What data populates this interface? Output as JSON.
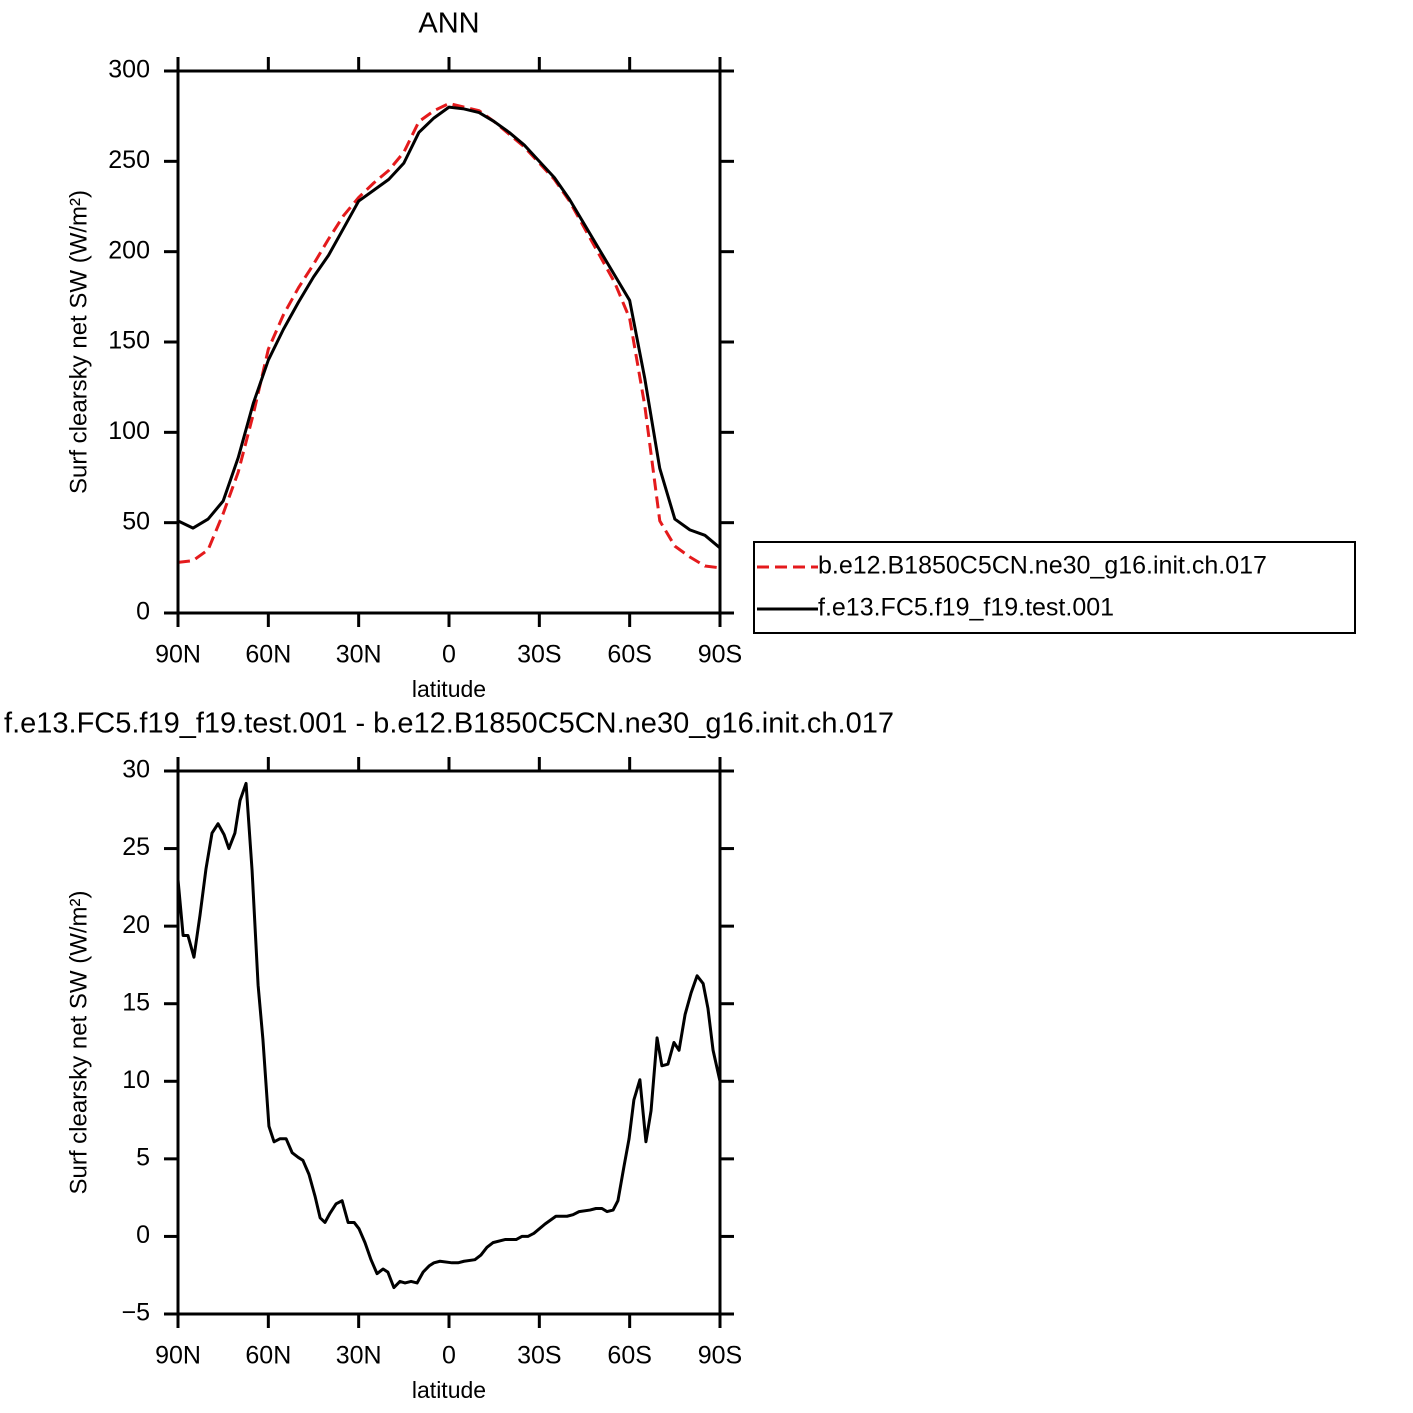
{
  "chart_data": [
    {
      "type": "line",
      "title": "ANN",
      "xlabel": "latitude",
      "ylabel": "Surf clearsky net SW (W/m²)",
      "x": [
        90,
        85,
        80,
        75,
        70,
        65,
        60,
        55,
        50,
        45,
        40,
        35,
        30,
        25,
        20,
        15,
        10,
        5,
        0,
        -5,
        -10,
        -15,
        -20,
        -25,
        -30,
        -35,
        -40,
        -45,
        -50,
        -55,
        -60,
        -65,
        -70,
        -75,
        -80,
        -85,
        -90
      ],
      "xlim": [
        90,
        -90
      ],
      "xticks": [
        {
          "value": 90,
          "label": "90N"
        },
        {
          "value": 60,
          "label": "60N"
        },
        {
          "value": 30,
          "label": "30N"
        },
        0,
        {
          "value": -30,
          "label": "30S"
        },
        {
          "value": -60,
          "label": "60S"
        },
        {
          "value": -90,
          "label": "90S"
        }
      ],
      "ylim": [
        0,
        300
      ],
      "yticks": [
        0,
        50,
        100,
        150,
        200,
        250,
        300
      ],
      "legend": "right",
      "series": [
        {
          "name": "b.e12.B1850C5CN.ne30_g16.init.ch.017",
          "color": "#e41a1c",
          "dash": "dashed",
          "values": [
            28,
            29,
            35,
            55,
            78,
            110,
            146,
            165,
            180,
            193,
            207,
            220,
            230,
            238,
            245,
            255,
            272,
            278,
            282,
            280,
            278,
            272,
            265,
            258,
            249,
            240,
            228,
            213,
            198,
            183,
            163,
            115,
            51,
            37,
            31,
            26,
            25
          ]
        },
        {
          "name": "f.e13.FC5.f19_f19.test.001",
          "color": "#000000",
          "dash": "solid",
          "values": [
            51,
            47,
            52,
            62,
            86,
            116,
            140,
            157,
            172,
            186,
            198,
            213,
            228,
            234,
            240,
            249,
            266,
            274,
            280,
            279,
            277,
            272,
            266,
            259,
            250,
            241,
            229,
            215,
            201,
            187,
            173,
            130,
            80,
            52,
            46,
            43,
            36
          ]
        }
      ]
    },
    {
      "type": "line",
      "title": "f.e13.FC5.f19_f19.test.001 - b.e12.B1850C5CN.ne30_g16.init.ch.017",
      "xlabel": "latitude",
      "ylabel": "Surf clearsky net SW (W/m²)",
      "x": [
        90,
        88.3,
        86.7,
        84.7,
        82.7,
        80.7,
        78.7,
        76.7,
        74.7,
        73.1,
        71.1,
        69.4,
        67.4,
        65.4,
        63.4,
        61.8,
        59.8,
        58.1,
        56.1,
        54.1,
        52.1,
        50.1,
        48.5,
        46.5,
        44.5,
        42.8,
        41.2,
        39.5,
        37.5,
        35.5,
        33.5,
        31.5,
        29.9,
        27.9,
        25.9,
        23.9,
        21.9,
        20.3,
        18.3,
        16.3,
        14.6,
        12.6,
        10.6,
        8.6,
        6.6,
        5.0,
        3.0,
        -1.0,
        -3.0,
        -5.0,
        -8.6,
        -10.6,
        -12.6,
        -14.6,
        -18.6,
        -22.3,
        -24.2,
        -26.2,
        -28.2,
        -31.9,
        -35.5,
        -39.2,
        -41.2,
        -43.2,
        -46.8,
        -48.8,
        -50.8,
        -52.5,
        -54.5,
        -56.1,
        -58.1,
        -59.8,
        -61.4,
        -63.4,
        -65.4,
        -67.1,
        -69.1,
        -70.7,
        -72.7,
        -74.7,
        -76.4,
        -78.4,
        -80.4,
        -82.4,
        -84.4,
        -86.0,
        -87.7,
        -90
      ],
      "xlim": [
        90,
        -90
      ],
      "xticks": [
        {
          "value": 90,
          "label": "90N"
        },
        {
          "value": 60,
          "label": "60N"
        },
        {
          "value": 30,
          "label": "30N"
        },
        0,
        {
          "value": -30,
          "label": "30S"
        },
        {
          "value": -60,
          "label": "60S"
        },
        {
          "value": -90,
          "label": "90S"
        }
      ],
      "ylim": [
        -5,
        30
      ],
      "yticks": [
        {
          "value": -5,
          "label": "−5"
        },
        0,
        5,
        10,
        15,
        20,
        25,
        30
      ],
      "series": [
        {
          "color": "#000000",
          "dash": "solid",
          "values": [
            23.0,
            19.4,
            19.4,
            18.0,
            20.7,
            23.7,
            26.0,
            26.6,
            25.9,
            25.0,
            26.0,
            28.1,
            29.2,
            23.6,
            16.2,
            12.7,
            7.1,
            6.1,
            6.3,
            6.3,
            5.4,
            5.1,
            4.9,
            4.0,
            2.6,
            1.2,
            0.9,
            1.5,
            2.1,
            2.3,
            0.9,
            0.9,
            0.5,
            -0.4,
            -1.5,
            -2.4,
            -2.1,
            -2.3,
            -3.3,
            -2.9,
            -3.0,
            -2.9,
            -3.0,
            -2.3,
            -1.9,
            -1.7,
            -1.6,
            -1.7,
            -1.7,
            -1.6,
            -1.5,
            -1.2,
            -0.7,
            -0.4,
            -0.2,
            -0.2,
            0.0,
            0.0,
            0.2,
            0.8,
            1.3,
            1.3,
            1.4,
            1.6,
            1.7,
            1.8,
            1.8,
            1.6,
            1.7,
            2.3,
            4.5,
            6.3,
            8.8,
            10.1,
            6.1,
            8.1,
            12.8,
            11.0,
            11.1,
            12.5,
            12.0,
            14.3,
            15.7,
            16.8,
            16.3,
            14.7,
            12.0,
            10.0
          ]
        }
      ]
    }
  ]
}
